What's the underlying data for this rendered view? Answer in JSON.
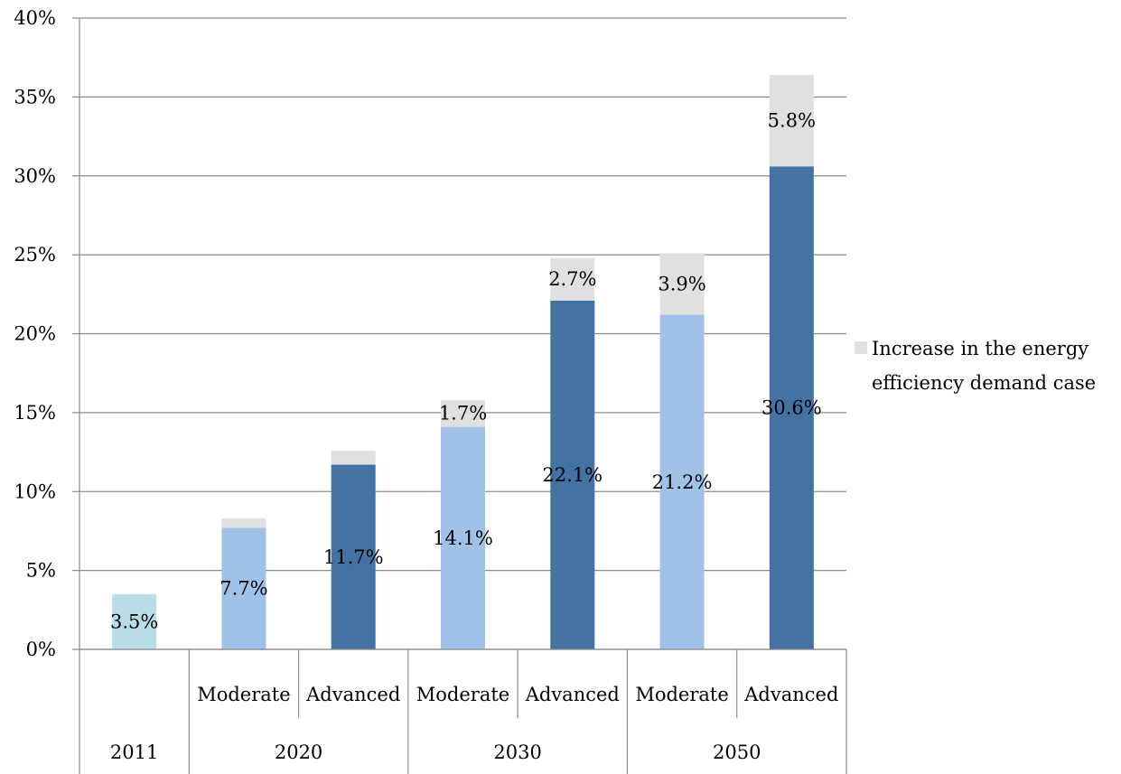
{
  "chart_data": {
    "type": "bar",
    "stacked": true,
    "groups": [
      "2011",
      "2020",
      "2030",
      "2050"
    ],
    "categories": [
      {
        "group": "2011",
        "label": ""
      },
      {
        "group": "2020",
        "label": "Moderate"
      },
      {
        "group": "2020",
        "label": "Advanced"
      },
      {
        "group": "2030",
        "label": "Moderate"
      },
      {
        "group": "2030",
        "label": "Advanced"
      },
      {
        "group": "2050",
        "label": "Moderate"
      },
      {
        "group": "2050",
        "label": "Advanced"
      }
    ],
    "series": [
      {
        "values": [
          3.5,
          7.7,
          11.7,
          14.1,
          22.1,
          21.2,
          30.6
        ],
        "labels": [
          "3.5%",
          "7.7%",
          "11.7%",
          "14.1%",
          "22.1%",
          "21.2%",
          "30.6%"
        ],
        "colors": [
          "#b8dde6",
          "#a1c2e8",
          "#4472a3",
          "#a1c2e8",
          "#4472a3",
          "#a1c2e8",
          "#4472a3"
        ]
      },
      {
        "name": "Increase in the energy efficiency demand case",
        "values": [
          0,
          0.6,
          0.9,
          1.7,
          2.7,
          3.9,
          5.8
        ],
        "labels": [
          "",
          "",
          "",
          "1.7%",
          "2.7%",
          "3.9%",
          "5.8%"
        ],
        "color": "#e0e0e0"
      }
    ],
    "y_ticks": [
      "0%",
      "5%",
      "10%",
      "15%",
      "20%",
      "25%",
      "30%",
      "35%",
      "40%"
    ],
    "ylim": [
      0,
      40
    ],
    "grid": true,
    "legend": {
      "position": "right",
      "lines": [
        "Increase in the energy",
        "efficiency demand case"
      ]
    },
    "title": "",
    "xlabel": "",
    "ylabel": ""
  }
}
